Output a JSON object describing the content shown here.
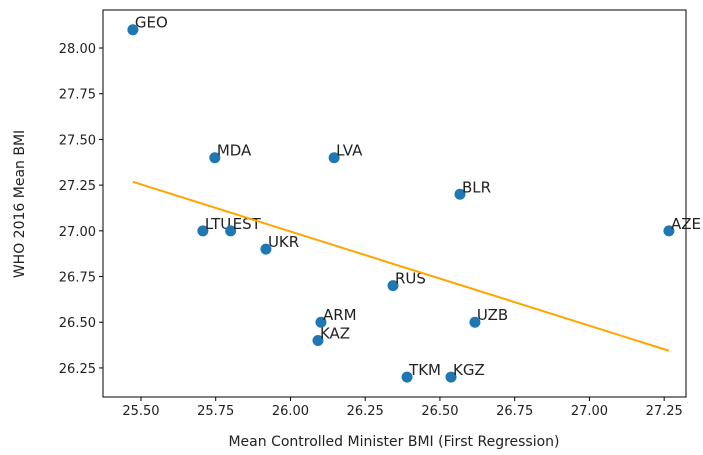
{
  "chart_data": {
    "type": "scatter",
    "xlabel": "Mean Controlled Minister BMI (First Regression)",
    "ylabel": "WHO 2016 Mean BMI",
    "series": [
      {
        "color": "#1f77b4",
        "labels": [
          "GEO",
          "MDA",
          "LVA",
          "BLR",
          "AZE",
          "LTU",
          "EST",
          "UKR",
          "RUS",
          "ARM",
          "UZB",
          "KAZ",
          "TKM",
          "KGZ"
        ],
        "x": [
          25.473,
          25.747,
          26.146,
          26.567,
          27.266,
          25.707,
          25.8,
          25.918,
          26.343,
          26.102,
          26.617,
          26.092,
          26.39,
          26.537
        ],
        "values": [
          28.1,
          27.4,
          27.4,
          27.2,
          27.0,
          27.0,
          27.0,
          26.9,
          26.7,
          26.5,
          26.5,
          26.4,
          26.2,
          26.2
        ]
      }
    ],
    "fit": {
      "color": "orange",
      "x": [
        25.473,
        27.266
      ],
      "values": [
        27.268,
        26.344
      ]
    },
    "xlim": [
      25.373,
      27.323
    ],
    "ylim": [
      26.091,
      28.208
    ],
    "xticks": [
      {
        "value": 25.5,
        "label": "25.50"
      },
      {
        "value": 25.75,
        "label": "25.75"
      },
      {
        "value": 26.0,
        "label": "26.00"
      },
      {
        "value": 26.25,
        "label": "26.25"
      },
      {
        "value": 26.5,
        "label": "26.50"
      },
      {
        "value": 26.75,
        "label": "26.75"
      },
      {
        "value": 27.0,
        "label": "27.00"
      },
      {
        "value": 27.25,
        "label": "27.25"
      }
    ],
    "yticks": [
      {
        "value": 26.25,
        "label": "26.25"
      },
      {
        "value": 26.5,
        "label": "26.50"
      },
      {
        "value": 26.75,
        "label": "26.75"
      },
      {
        "value": 27.0,
        "label": "27.00"
      },
      {
        "value": 27.25,
        "label": "27.25"
      },
      {
        "value": 27.5,
        "label": "27.50"
      },
      {
        "value": 27.75,
        "label": "27.75"
      },
      {
        "value": 28.0,
        "label": "28.00"
      }
    ]
  }
}
